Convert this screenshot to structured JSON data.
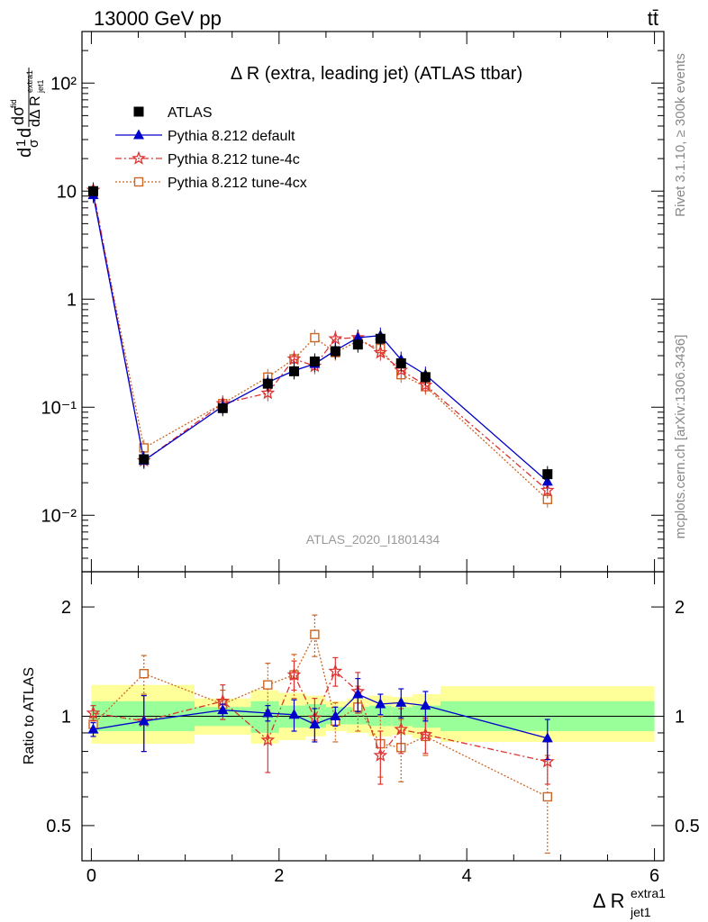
{
  "header": {
    "left": "13000 GeV pp",
    "right": "tt̄"
  },
  "side_labels": {
    "rivet": "Rivet 3.1.10, ≥ 300k events",
    "mcplots": "mcplots.cern.ch [arXiv:1306.3436]"
  },
  "chart_data": [
    {
      "type": "scatter",
      "panel": "main",
      "title": "Δ R (extra, leading jet) (ATLAS ttbar)",
      "watermark": "ATLAS_2020_I1801434",
      "ylabel": "dσ⁻¹ dσ/dΔ R",
      "yscale": "log",
      "ylim": [
        0.003,
        300
      ],
      "xlim": [
        -0.1,
        6.1
      ],
      "yticks": [
        {
          "value": 0.01,
          "label": "10⁻²"
        },
        {
          "value": 0.1,
          "label": "10⁻¹"
        },
        {
          "value": 1,
          "label": "1"
        },
        {
          "value": 10,
          "label": "10"
        },
        {
          "value": 100,
          "label": "10²"
        }
      ],
      "legend": "top-left",
      "series": [
        {
          "name": "ATLAS",
          "color": "#000000",
          "marker": "square-filled",
          "x": [
            0.02,
            0.56,
            1.4,
            1.88,
            2.16,
            2.38,
            2.6,
            2.84,
            3.08,
            3.3,
            3.56,
            4.86
          ],
          "y": [
            10.0,
            0.033,
            0.098,
            0.165,
            0.215,
            0.265,
            0.33,
            0.38,
            0.43,
            0.255,
            0.19,
            0.024
          ]
        },
        {
          "name": "Pythia 8.212 default",
          "color": "#0000cc",
          "marker": "triangle-filled",
          "line": "solid",
          "x": [
            0.02,
            0.56,
            1.4,
            1.88,
            2.16,
            2.38,
            2.6,
            2.84,
            3.08,
            3.3,
            3.56,
            4.86
          ],
          "y": [
            9.2,
            0.032,
            0.102,
            0.17,
            0.218,
            0.252,
            0.335,
            0.44,
            0.46,
            0.275,
            0.2,
            0.0205
          ]
        },
        {
          "name": "Pythia 8.212 tune-4c",
          "color": "#dd3333",
          "marker": "star-open",
          "line": "dashdot",
          "x": [
            0.02,
            0.56,
            1.4,
            1.88,
            2.16,
            2.38,
            2.6,
            2.84,
            3.08,
            3.3,
            3.56,
            4.86
          ],
          "y": [
            10.2,
            0.032,
            0.108,
            0.135,
            0.28,
            0.24,
            0.43,
            0.44,
            0.32,
            0.22,
            0.16,
            0.017
          ]
        },
        {
          "name": "Pythia 8.212 tune-4cx",
          "color": "#cc6622",
          "marker": "square-open",
          "line": "dotted",
          "x": [
            0.02,
            0.56,
            1.4,
            1.88,
            2.16,
            2.38,
            2.6,
            2.84,
            3.08,
            3.3,
            3.56,
            4.86
          ],
          "y": [
            9.5,
            0.042,
            0.108,
            0.19,
            0.28,
            0.44,
            0.32,
            0.41,
            0.35,
            0.2,
            0.155,
            0.014
          ]
        }
      ]
    },
    {
      "type": "scatter",
      "panel": "ratio",
      "ylabel": "Ratio to ATLAS",
      "yscale": "log",
      "ylim": [
        0.4,
        2.5
      ],
      "xlim": [
        -0.1,
        6.1
      ],
      "xlabel": "Δ R",
      "xlabel_sup": "extra1",
      "xlabel_sub": "jet1",
      "xticks": [
        0,
        2,
        4,
        6
      ],
      "yticks": [
        {
          "value": 0.5,
          "label": "0.5"
        },
        {
          "value": 1,
          "label": "1"
        },
        {
          "value": 2,
          "label": "2"
        }
      ],
      "bands": [
        {
          "x0": 0.0,
          "x1": 1.1,
          "green": [
            0.91,
            1.1
          ],
          "yellow": [
            0.84,
            1.22
          ]
        },
        {
          "x0": 1.1,
          "x1": 1.7,
          "green": [
            0.94,
            1.06
          ],
          "yellow": [
            0.89,
            1.12
          ]
        },
        {
          "x0": 1.7,
          "x1": 2.0,
          "green": [
            0.9,
            1.1
          ],
          "yellow": [
            0.84,
            1.18
          ]
        },
        {
          "x0": 2.0,
          "x1": 2.28,
          "green": [
            0.93,
            1.07
          ],
          "yellow": [
            0.86,
            1.16
          ]
        },
        {
          "x0": 2.28,
          "x1": 2.5,
          "green": [
            0.93,
            1.08
          ],
          "yellow": [
            0.88,
            1.14
          ]
        },
        {
          "x0": 2.5,
          "x1": 2.72,
          "green": [
            0.95,
            1.06
          ],
          "yellow": [
            0.91,
            1.1
          ]
        },
        {
          "x0": 2.72,
          "x1": 2.96,
          "green": [
            0.95,
            1.06
          ],
          "yellow": [
            0.9,
            1.12
          ]
        },
        {
          "x0": 2.96,
          "x1": 3.2,
          "green": [
            0.94,
            1.07
          ],
          "yellow": [
            0.88,
            1.14
          ]
        },
        {
          "x0": 3.2,
          "x1": 3.42,
          "green": [
            0.94,
            1.06
          ],
          "yellow": [
            0.89,
            1.13
          ]
        },
        {
          "x0": 3.42,
          "x1": 3.72,
          "green": [
            0.93,
            1.07
          ],
          "yellow": [
            0.87,
            1.15
          ]
        },
        {
          "x0": 3.72,
          "x1": 6.0,
          "green": [
            0.91,
            1.1
          ],
          "yellow": [
            0.85,
            1.21
          ]
        }
      ],
      "series": [
        {
          "name": "Pythia 8.212 default",
          "color": "#0000cc",
          "marker": "triangle-filled",
          "line": "solid",
          "x": [
            0.02,
            0.56,
            1.4,
            1.88,
            2.16,
            2.38,
            2.6,
            2.84,
            3.08,
            3.3,
            3.56,
            4.86
          ],
          "y": [
            0.92,
            0.97,
            1.04,
            1.02,
            1.01,
            0.95,
            1.0,
            1.15,
            1.08,
            1.09,
            1.07,
            0.87
          ],
          "err": [
            0.04,
            0.17,
            0.04,
            0.05,
            0.1,
            0.1,
            0.06,
            0.12,
            0.07,
            0.1,
            0.1,
            0.11
          ]
        },
        {
          "name": "Pythia 8.212 tune-4c",
          "color": "#dd3333",
          "marker": "star-open",
          "line": "dashdot",
          "x": [
            0.02,
            0.56,
            1.4,
            1.88,
            2.16,
            2.38,
            2.6,
            2.84,
            3.08,
            3.3,
            3.56,
            4.86
          ],
          "y": [
            1.02,
            0.97,
            1.1,
            0.86,
            1.3,
            0.99,
            1.33,
            1.17,
            0.78,
            0.92,
            0.89,
            0.75
          ],
          "err": [
            0.05,
            0.17,
            0.12,
            0.16,
            0.12,
            0.13,
            0.12,
            0.15,
            0.13,
            0.13,
            0.1,
            0.1
          ]
        },
        {
          "name": "Pythia 8.212 tune-4cx",
          "color": "#cc6622",
          "marker": "square-open",
          "line": "dotted",
          "x": [
            0.02,
            0.56,
            1.4,
            1.88,
            2.16,
            2.38,
            2.6,
            2.84,
            3.08,
            3.3,
            3.56,
            4.86
          ],
          "y": [
            0.95,
            1.31,
            1.08,
            1.22,
            1.3,
            1.68,
            0.97,
            1.06,
            0.84,
            0.82,
            0.88,
            0.6
          ],
          "err": [
            0.04,
            0.16,
            0.1,
            0.18,
            0.18,
            0.22,
            0.12,
            0.15,
            0.16,
            0.16,
            0.1,
            0.18
          ]
        }
      ]
    }
  ]
}
